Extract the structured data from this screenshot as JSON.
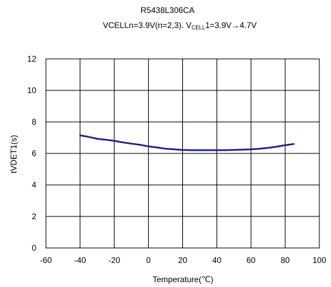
{
  "chart_data": {
    "type": "line",
    "title": "R5438L306CA",
    "subtitle": {
      "prefix": "VCELLn=3.9V(n=2,3). V",
      "subscript": "CELL",
      "suffix": "1=3.9V→4.7V"
    },
    "xlabel": "Temperature(℃)",
    "ylabel": "tVDET1(s)",
    "xlim": [
      -60,
      100
    ],
    "ylim": [
      0,
      12
    ],
    "xticks": [
      -60,
      -40,
      -20,
      0,
      20,
      40,
      60,
      80,
      100
    ],
    "yticks": [
      0,
      2,
      4,
      6,
      8,
      10,
      12
    ],
    "grid": true,
    "legend": "none",
    "series": [
      {
        "color": "#1a237e",
        "x": [
          -40,
          -35,
          -30,
          -25,
          -20,
          -15,
          -10,
          -5,
          0,
          5,
          10,
          15,
          20,
          25,
          30,
          35,
          40,
          45,
          50,
          55,
          60,
          65,
          70,
          75,
          80,
          85
        ],
        "y": [
          7.15,
          7.05,
          6.93,
          6.87,
          6.8,
          6.7,
          6.62,
          6.55,
          6.45,
          6.38,
          6.3,
          6.26,
          6.22,
          6.21,
          6.21,
          6.21,
          6.21,
          6.21,
          6.22,
          6.24,
          6.26,
          6.3,
          6.35,
          6.43,
          6.52,
          6.6
        ]
      }
    ]
  }
}
